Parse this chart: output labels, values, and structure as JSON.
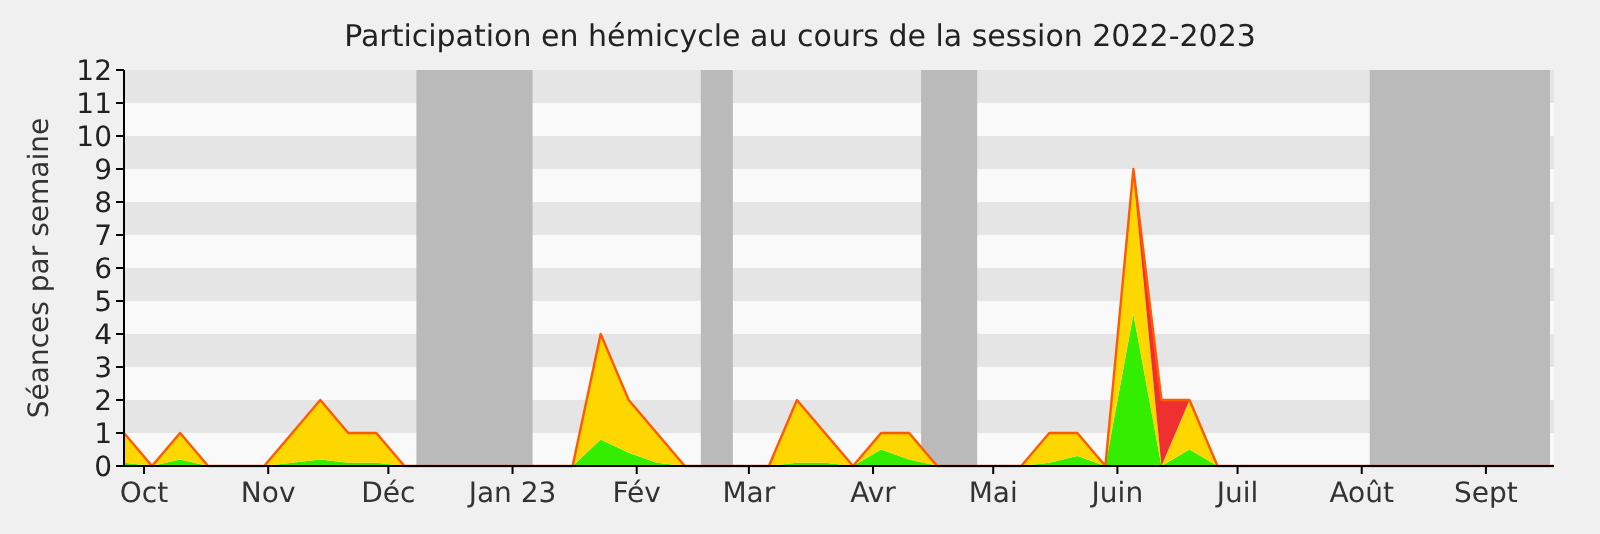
{
  "chart_data": {
    "type": "area",
    "title": "Participation en hémicycle au cours de la session 2022-2023",
    "ylabel": "Séances par semaine",
    "stacked": true,
    "x": [
      "2022-09-26",
      "2022-10-03",
      "2022-10-10",
      "2022-10-17",
      "2022-10-24",
      "2022-10-31",
      "2022-11-07",
      "2022-11-14",
      "2022-11-21",
      "2022-11-28",
      "2022-12-05",
      "2022-12-12",
      "2022-12-19",
      "2022-12-26",
      "2023-01-02",
      "2023-01-09",
      "2023-01-16",
      "2023-01-23",
      "2023-01-30",
      "2023-02-06",
      "2023-02-13",
      "2023-02-20",
      "2023-02-27",
      "2023-03-06",
      "2023-03-13",
      "2023-03-20",
      "2023-03-27",
      "2023-04-03",
      "2023-04-10",
      "2023-04-17",
      "2023-04-24",
      "2023-05-01",
      "2023-05-08",
      "2023-05-15",
      "2023-05-22",
      "2023-05-29",
      "2023-06-05",
      "2023-06-12",
      "2023-06-19",
      "2023-06-26",
      "2023-07-03",
      "2023-07-10",
      "2023-07-17",
      "2023-07-24",
      "2023-07-31",
      "2023-08-07",
      "2023-08-14",
      "2023-08-21",
      "2023-08-28",
      "2023-09-04",
      "2023-09-11",
      "2023-09-18"
    ],
    "series": [
      {
        "color": "#33ee00",
        "values": [
          0.1,
          0,
          0.2,
          0,
          0,
          0,
          0.1,
          0.2,
          0.1,
          0.1,
          0,
          0,
          0,
          0,
          0,
          0,
          0,
          0.8,
          0.4,
          0.1,
          0,
          0,
          0,
          0,
          0.1,
          0.1,
          0,
          0.5,
          0.2,
          0,
          0,
          0,
          0,
          0.1,
          0.3,
          0,
          4.6,
          0,
          0.5,
          0,
          0,
          0,
          0,
          0,
          0,
          0,
          0,
          0,
          0,
          0,
          0,
          0
        ]
      },
      {
        "color": "#ffd700",
        "values": [
          0.9,
          0,
          0.8,
          0,
          0,
          0,
          0.9,
          1.8,
          0.9,
          0.9,
          0,
          0,
          0,
          0,
          0,
          0,
          0,
          3.2,
          1.6,
          0.9,
          0,
          0,
          0,
          0,
          1.9,
          0.9,
          0,
          0.5,
          0.8,
          0,
          0,
          0,
          0,
          0.9,
          0.7,
          0,
          4.2,
          0,
          1.5,
          0,
          0,
          0,
          0,
          0,
          0,
          0,
          0,
          0,
          0,
          0,
          0,
          0
        ]
      },
      {
        "color": "#f03030",
        "values": [
          0,
          0,
          0,
          0,
          0,
          0,
          0,
          0,
          0,
          0,
          0,
          0,
          0,
          0,
          0,
          0,
          0,
          0,
          0,
          0,
          0,
          0,
          0,
          0,
          0,
          0,
          0,
          0,
          0,
          0,
          0,
          0,
          0,
          0,
          0,
          0,
          0.2,
          2,
          0,
          0,
          0,
          0,
          0,
          0,
          0,
          0,
          0,
          0,
          0,
          0,
          0,
          0
        ]
      }
    ],
    "xlim": [
      "2022-09-26",
      "2023-09-18"
    ],
    "xticks": [
      {
        "value": "2022-10-01",
        "label": "Oct"
      },
      {
        "value": "2022-11-01",
        "label": "Nov"
      },
      {
        "value": "2022-12-01",
        "label": "Déc"
      },
      {
        "value": "2023-01-01",
        "label": "Jan 23"
      },
      {
        "value": "2023-02-01",
        "label": "Fév"
      },
      {
        "value": "2023-03-01",
        "label": "Mar"
      },
      {
        "value": "2023-04-01",
        "label": "Avr"
      },
      {
        "value": "2023-05-01",
        "label": "Mai"
      },
      {
        "value": "2023-06-01",
        "label": "Juin"
      },
      {
        "value": "2023-07-01",
        "label": "Juil"
      },
      {
        "value": "2023-08-01",
        "label": "Août"
      },
      {
        "value": "2023-09-01",
        "label": "Sept"
      }
    ],
    "ylim": [
      0,
      12
    ],
    "yticks": [
      0,
      1,
      2,
      3,
      4,
      5,
      6,
      7,
      8,
      9,
      10,
      11,
      12
    ],
    "bands": [
      {
        "axis": "x",
        "from": "2022-12-08",
        "to": "2023-01-06",
        "color": "#bababa"
      },
      {
        "axis": "x",
        "from": "2023-02-17",
        "to": "2023-02-25",
        "color": "#bababa"
      },
      {
        "axis": "x",
        "from": "2023-04-13",
        "to": "2023-04-27",
        "color": "#bababa"
      },
      {
        "axis": "x",
        "from": "2023-08-03",
        "to": "2023-09-17",
        "color": "#bababa"
      }
    ]
  }
}
